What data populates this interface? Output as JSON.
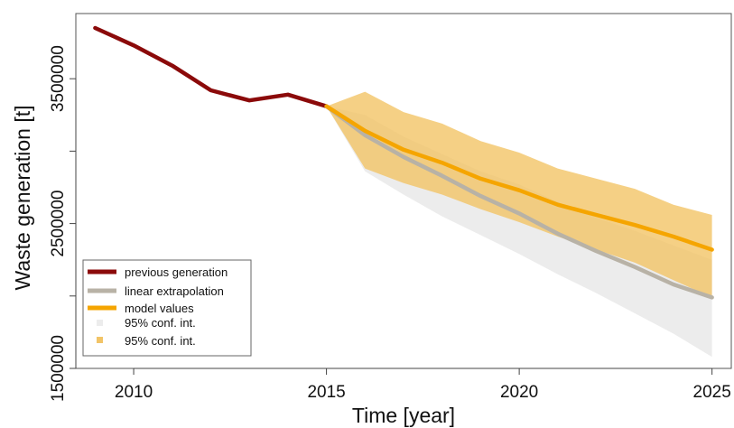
{
  "chart_data": {
    "type": "line",
    "title": "",
    "xlabel": "Time [year]",
    "ylabel": "Waste generation [t]",
    "xlim": [
      2008.5,
      2025.5
    ],
    "ylim": [
      1500000,
      3950000
    ],
    "x_ticks": [
      2010,
      2015,
      2020,
      2025
    ],
    "y_ticks": [
      1500000,
      2000000,
      2500000,
      3000000,
      3500000
    ],
    "y_tick_labels": [
      "1500000",
      "",
      "2500000",
      "",
      "3500000"
    ],
    "grid": false,
    "legend_position": "bottom-left",
    "series": [
      {
        "name": "previous generation",
        "color": "#8b0a0a",
        "x": [
          2009,
          2010,
          2011,
          2012,
          2013,
          2014,
          2015
        ],
        "y": [
          3850000,
          3730000,
          3590000,
          3420000,
          3350000,
          3390000,
          3310000
        ]
      },
      {
        "name": "linear extrapolation",
        "color": "#b8b2a6",
        "x": [
          2015,
          2016,
          2017,
          2018,
          2019,
          2020,
          2021,
          2022,
          2023,
          2024,
          2025
        ],
        "y": [
          3310000,
          3110000,
          2960000,
          2830000,
          2690000,
          2570000,
          2430000,
          2310000,
          2200000,
          2080000,
          1990000
        ]
      },
      {
        "name": "model values",
        "color": "#f5a500",
        "x": [
          2015,
          2016,
          2017,
          2018,
          2019,
          2020,
          2021,
          2022,
          2023,
          2024,
          2025
        ],
        "y": [
          3310000,
          3140000,
          3010000,
          2920000,
          2810000,
          2730000,
          2630000,
          2560000,
          2490000,
          2410000,
          2320000
        ]
      }
    ],
    "bands": [
      {
        "name": "95% conf. int.",
        "color": "#ececec",
        "x": [
          2015,
          2016,
          2017,
          2018,
          2019,
          2020,
          2021,
          2022,
          2023,
          2024,
          2025
        ],
        "lower": [
          3310000,
          2860000,
          2700000,
          2550000,
          2420000,
          2290000,
          2150000,
          2020000,
          1880000,
          1740000,
          1580000
        ],
        "upper": [
          3310000,
          3250000,
          3100000,
          2980000,
          2860000,
          2770000,
          2650000,
          2540000,
          2450000,
          2350000,
          2250000
        ]
      },
      {
        "name": "95% conf. int.",
        "color": "#f2c467",
        "x": [
          2015,
          2016,
          2017,
          2018,
          2019,
          2020,
          2021,
          2022,
          2023,
          2024,
          2025
        ],
        "lower": [
          3310000,
          2880000,
          2780000,
          2700000,
          2600000,
          2510000,
          2410000,
          2320000,
          2230000,
          2110000,
          1990000
        ],
        "upper": [
          3310000,
          3410000,
          3270000,
          3190000,
          3070000,
          2990000,
          2880000,
          2810000,
          2740000,
          2630000,
          2560000
        ]
      }
    ]
  }
}
